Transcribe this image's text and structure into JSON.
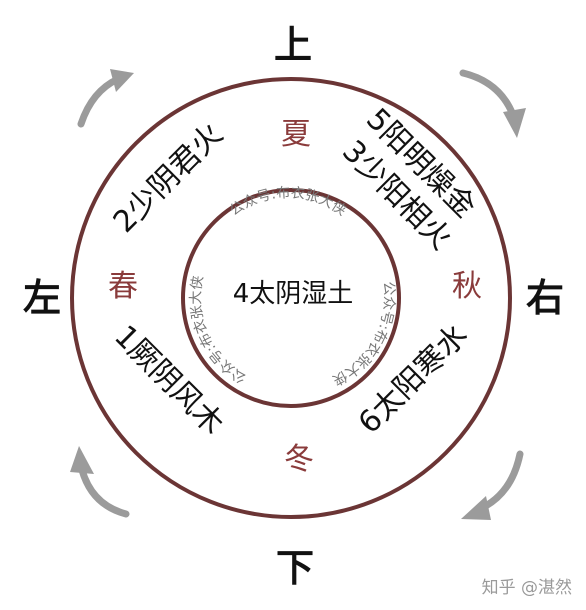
{
  "directions": {
    "top": "上",
    "bottom": "下",
    "left": "左",
    "right": "右"
  },
  "seasons": {
    "summer": "夏",
    "spring": "春",
    "autumn": "秋",
    "winter": "冬"
  },
  "qi": {
    "shaoyin_junhuo": "2少阴君火",
    "yangming_zaojin": "5阳明燥金",
    "shaoyang_xianghuo": "3少阳相火",
    "jueyin_fengmu": "1厥阴风木",
    "taiyang_hanshui": "6太阳寒水"
  },
  "center": "4太阴湿土",
  "watermark": "公众号:布衣张大侠",
  "credit": "知乎 @湛然",
  "colors": {
    "ring": "#6b3535",
    "arrow": "#9b9b9b",
    "season": "#8a3b3b"
  }
}
